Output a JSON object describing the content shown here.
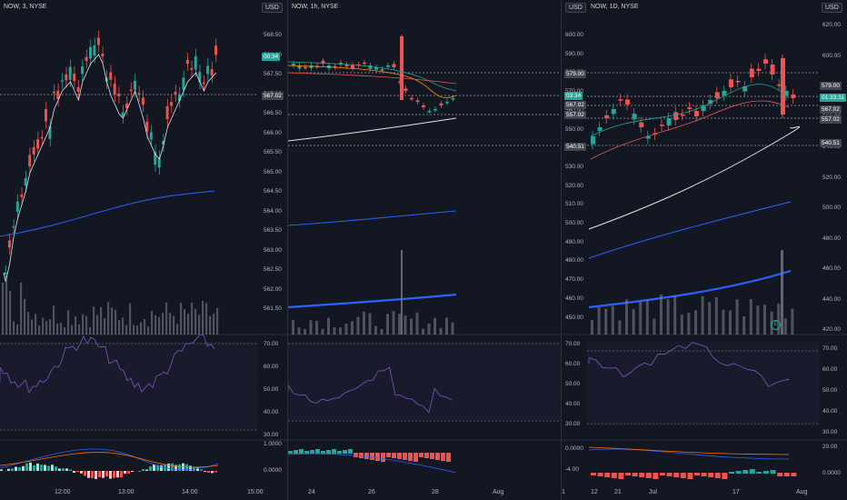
{
  "panes": [
    {
      "symbol_label": "NOW, 3, NYSE",
      "currency": "USD",
      "price_axis": [
        "568.50",
        "568.00",
        "567.50",
        "567.00",
        "566.50",
        "566.00",
        "565.50",
        "565.00",
        "564.50",
        "564.00",
        "563.50",
        "563.00",
        "562.50",
        "562.00",
        "561.50"
      ],
      "price_tags": [
        {
          "text": "00:34",
          "color": "#26a69a"
        },
        {
          "text": "567.02",
          "color": "#434651"
        }
      ],
      "rsi_axis": [
        "70.00",
        "60.00",
        "50.00",
        "40.00",
        "30.00"
      ],
      "macd_axis": [
        "1.0000",
        "0.0000"
      ],
      "time_axis": [
        "12:00",
        "13:00",
        "14:00",
        "15:00"
      ]
    },
    {
      "symbol_label": "NOW, 1h, NYSE",
      "currency": "USD",
      "price_axis": [
        "579.00",
        "03:34",
        "567.02",
        "557.02",
        "540.51"
      ],
      "time_axis": [
        "24",
        "26",
        "28",
        "Aug"
      ]
    },
    {
      "symbol_label": "NOW, 1D, NYSE",
      "currency": "USD",
      "price_axis_left": [
        "600.00",
        "590.00",
        "580.00",
        "570.00",
        "560.00",
        "550.00",
        "540.00",
        "530.00",
        "520.00",
        "510.00",
        "500.00",
        "490.00",
        "480.00",
        "470.00",
        "460.00",
        "450.00"
      ],
      "rsi_axis_left": [
        "70.00",
        "60.00",
        "50.00",
        "40.00",
        "30.00"
      ],
      "macd_axis_left": [
        "0.0000",
        "-4.00"
      ],
      "time_axis": [
        "1",
        "12",
        "21",
        "Jul",
        "17",
        "Aug"
      ]
    },
    {
      "currency": "USD",
      "price_axis": [
        "620.00",
        "600.00",
        "580.00",
        "560.00",
        "540.00",
        "520.00",
        "500.00",
        "480.00",
        "460.00",
        "440.00",
        "420.00"
      ],
      "price_tags": [
        {
          "text": "579.00",
          "color": "#434651"
        },
        {
          "text": "01:33:31",
          "color": "#26a69a"
        },
        {
          "text": "567.02",
          "color": "#434651"
        },
        {
          "text": "557.02",
          "color": "#434651"
        },
        {
          "text": "540.51",
          "color": "#434651"
        }
      ],
      "rsi_axis": [
        "70.00",
        "60.00",
        "50.00",
        "40.00",
        "30.00"
      ],
      "macd_axis": [
        "20.00",
        "0.0000"
      ]
    }
  ],
  "colors": {
    "up": "#26a69a",
    "down": "#ef5350",
    "bg": "#131722",
    "grid": "#2a2e39"
  }
}
